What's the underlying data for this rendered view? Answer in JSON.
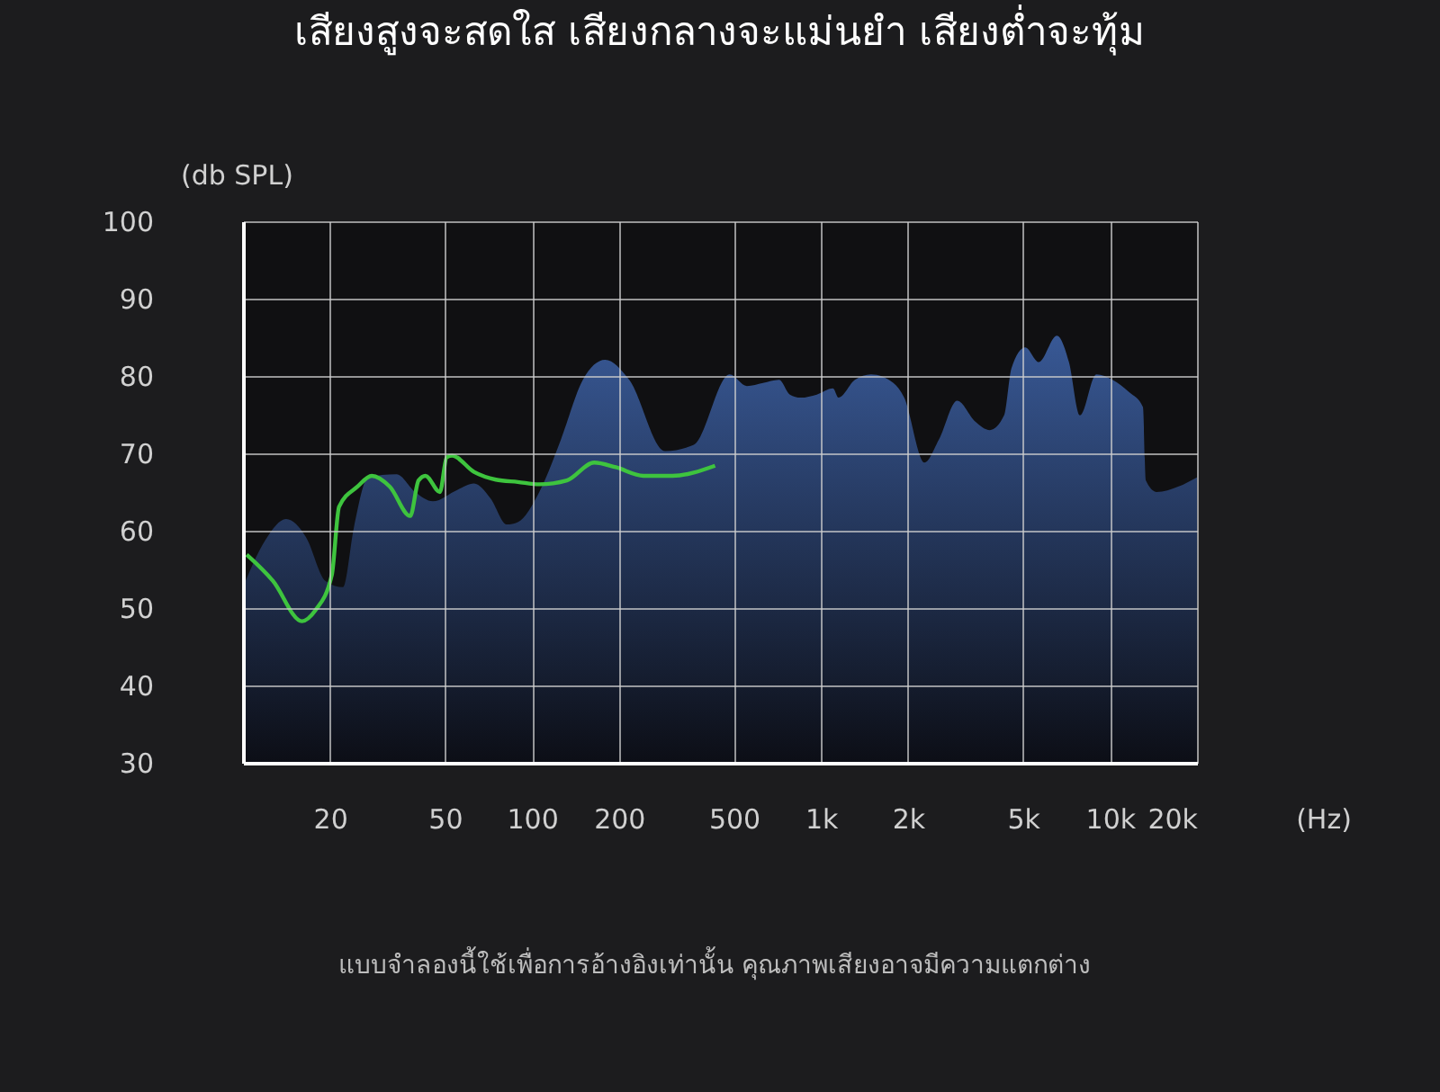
{
  "chart_data": {
    "type": "area",
    "title": "เสียงสูงจะสดใส เสียงกลางจะแม่นยำ เสียงต่ำจะทุ้ม",
    "xlabel": "(Hz)",
    "ylabel": "(db SPL)",
    "annotations": [
      "แบบจำลองนี้ใช้เพื่อการอ้างอิงเท่านั้น คุณภาพเสียงอาจมีความแตกต่าง"
    ],
    "log": "x",
    "grid": true,
    "xlim": [
      10,
      20000
    ],
    "xticks": [
      20,
      50,
      100,
      200,
      500,
      {
        "value": 1000,
        "label": "1k"
      },
      {
        "value": 2000,
        "label": "2k"
      },
      {
        "value": 5000,
        "label": "5k"
      },
      {
        "value": 10000,
        "label": "10k"
      },
      {
        "value": 20000,
        "label": "20k"
      }
    ],
    "ylim": [
      30,
      100
    ],
    "yticks": [
      30,
      40,
      50,
      60,
      70,
      80,
      90,
      100
    ],
    "series": [
      {
        "color": "#3a5c9c",
        "x": [
          10,
          12,
          14.1,
          16.5,
          19.3,
          22.2,
          24.2,
          27.1,
          34,
          39.4,
          45.4,
          55.3,
          63,
          71.8,
          81.9,
          89.3,
          106,
          126,
          150,
          179,
          217,
          289,
          363,
          483,
          554,
          630,
          716,
          780,
          850,
          967,
          1100,
          1150,
          1310,
          1490,
          1780,
          1940,
          2280,
          2560,
          2960,
          3420,
          3840,
          4300,
          4560,
          5090,
          5670,
          6550,
          7210,
          7870,
          8970,
          10200,
          11650,
          13000,
          13300,
          14500,
          17200,
          20000
        ],
        "values": [
          52.7,
          58.9,
          61.5,
          59.2,
          53.5,
          52.7,
          60.4,
          66.9,
          67.3,
          65.0,
          63.8,
          65.3,
          66.1,
          64.2,
          60.8,
          61.1,
          65.0,
          71.8,
          79.5,
          82.1,
          79.5,
          70.3,
          71.1,
          80.2,
          78.7,
          79.1,
          79.5,
          77.6,
          77.2,
          77.6,
          78.4,
          77.2,
          79.5,
          80.2,
          79.1,
          77.2,
          68.8,
          71.8,
          76.8,
          74.1,
          73.0,
          74.9,
          81.0,
          83.7,
          81.8,
          85.2,
          81.8,
          74.9,
          80.2,
          79.5,
          77.9,
          76.0,
          66.5,
          65.0,
          65.7,
          66.9
        ]
      },
      {
        "type": "line",
        "color": "#3ec43e",
        "x": [
          10.3,
          12.7,
          16,
          17.8,
          20.3,
          21.5,
          24.9,
          27.9,
          32.2,
          37.9,
          40.5,
          42.8,
          48,
          50.7,
          52.9,
          63,
          75,
          89.3,
          106,
          132,
          164,
          195,
          243,
          306,
          430
        ],
        "values": [
          56.9,
          53.5,
          48.3,
          49.7,
          54.3,
          63.1,
          65.7,
          67.1,
          65.7,
          61.9,
          66.5,
          67.1,
          65.0,
          69.5,
          69.7,
          67.6,
          66.6,
          66.3,
          66.0,
          66.5,
          68.8,
          68.2,
          67.1,
          67.1,
          68.4
        ]
      }
    ]
  }
}
